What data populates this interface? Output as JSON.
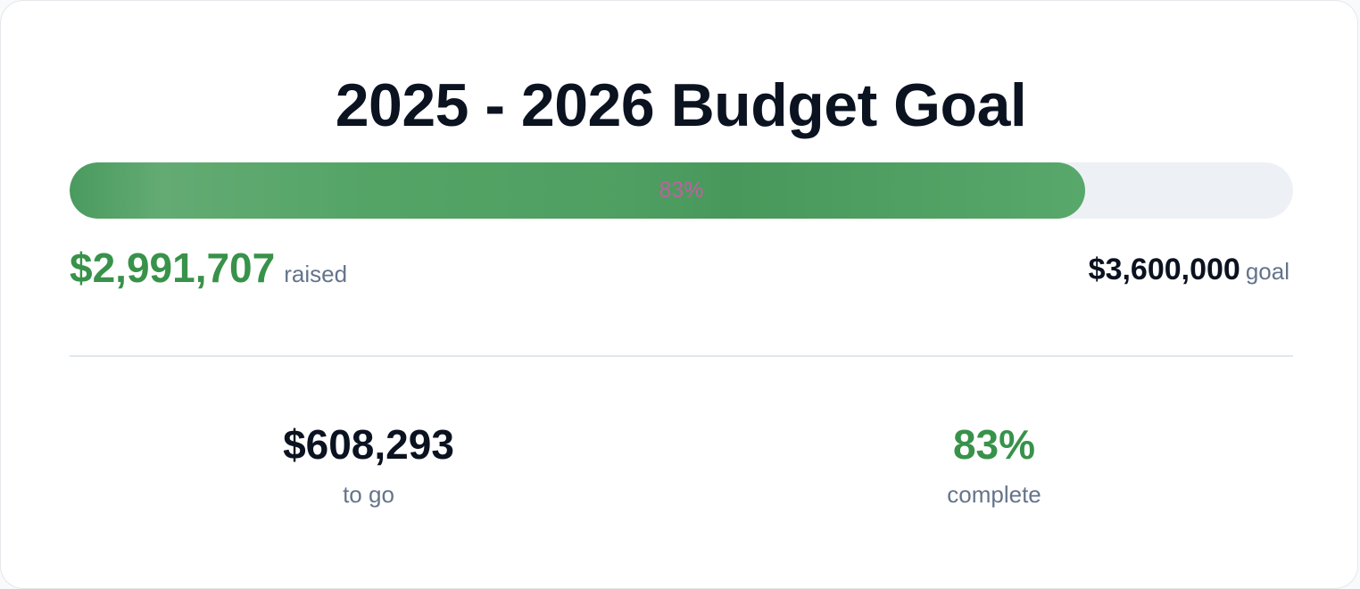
{
  "title": "2025 - 2026 Budget Goal",
  "progress": {
    "value": 83,
    "label": "83%"
  },
  "raised": {
    "amount": "$2,991,707",
    "label": "raised"
  },
  "goal": {
    "amount": "$3,600,000",
    "label": "goal"
  },
  "stats": [
    {
      "value": "$608,293",
      "label": "to go"
    },
    {
      "value": "83%",
      "label": "complete"
    }
  ]
}
